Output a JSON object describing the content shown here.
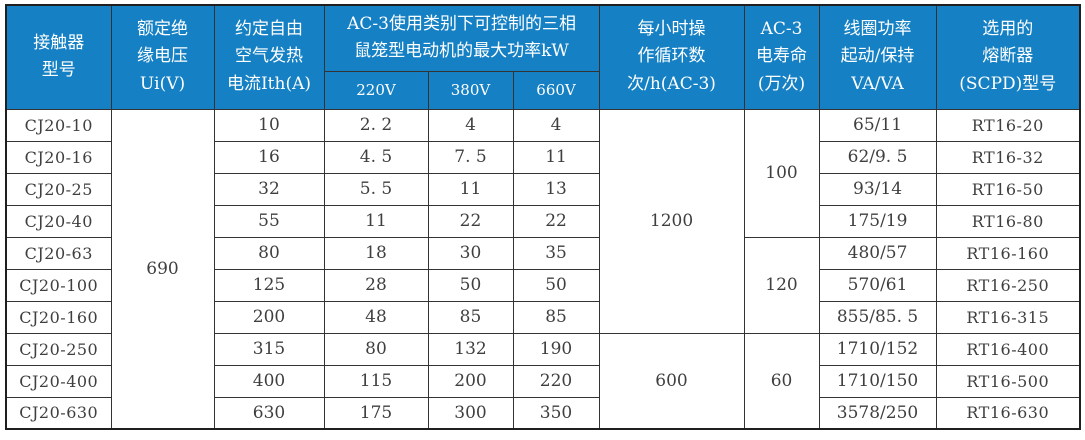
{
  "style": {
    "header_bg": "#1580c4",
    "header_text": "#ffffff",
    "body_text": "#3f3f3f",
    "border_color": "#333333"
  },
  "chart_data": {
    "type": "table",
    "header": {
      "model": "接触器\n型号",
      "insulation_voltage": "额定绝\n缘电压\nUi(V)",
      "thermal_current": "约定自由\n空气发热\n电流Ith(A)",
      "power_group": "AC-3使用类别下可控制的三相\n鼠笼型电动机的最大功率kW",
      "power_sub": [
        "220V",
        "380V",
        "660V"
      ],
      "ops_per_hour": "每小时操\n作循环数\n次/h(AC-3)",
      "electrical_life": "AC-3\n电寿命\n(万次)",
      "coil_power": "线圈功率\n起动/保持\nVA/VA",
      "fuse": "选用的\n熔断器\n(SCPD)型号"
    },
    "merged_values": {
      "insulation_voltage": "690",
      "ops_rows_1_7": "1200",
      "ops_rows_8_10": "600",
      "life_rows_1_4": "100",
      "life_rows_5_7": "120",
      "life_rows_8_10": "60"
    },
    "rows": [
      {
        "model": "CJ20-10",
        "ith": "10",
        "p220": "2. 2",
        "p380": "4",
        "p660": "4",
        "coil": "65/11",
        "fuse": "RT16-20"
      },
      {
        "model": "CJ20-16",
        "ith": "16",
        "p220": "4. 5",
        "p380": "7. 5",
        "p660": "11",
        "coil": "62/9. 5",
        "fuse": "RT16-32"
      },
      {
        "model": "CJ20-25",
        "ith": "32",
        "p220": "5. 5",
        "p380": "11",
        "p660": "13",
        "coil": "93/14",
        "fuse": "RT16-50"
      },
      {
        "model": "CJ20-40",
        "ith": "55",
        "p220": "11",
        "p380": "22",
        "p660": "22",
        "coil": "175/19",
        "fuse": "RT16-80"
      },
      {
        "model": "CJ20-63",
        "ith": "80",
        "p220": "18",
        "p380": "30",
        "p660": "35",
        "coil": "480/57",
        "fuse": "RT16-160"
      },
      {
        "model": "CJ20-100",
        "ith": "125",
        "p220": "28",
        "p380": "50",
        "p660": "50",
        "coil": "570/61",
        "fuse": "RT16-250"
      },
      {
        "model": "CJ20-160",
        "ith": "200",
        "p220": "48",
        "p380": "85",
        "p660": "85",
        "coil": "855/85. 5",
        "fuse": "RT16-315"
      },
      {
        "model": "CJ20-250",
        "ith": "315",
        "p220": "80",
        "p380": "132",
        "p660": "190",
        "coil": "1710/152",
        "fuse": "RT16-400"
      },
      {
        "model": "CJ20-400",
        "ith": "400",
        "p220": "115",
        "p380": "200",
        "p660": "220",
        "coil": "1710/150",
        "fuse": "RT16-500"
      },
      {
        "model": "CJ20-630",
        "ith": "630",
        "p220": "175",
        "p380": "300",
        "p660": "350",
        "coil": "3578/250",
        "fuse": "RT16-630"
      }
    ]
  }
}
